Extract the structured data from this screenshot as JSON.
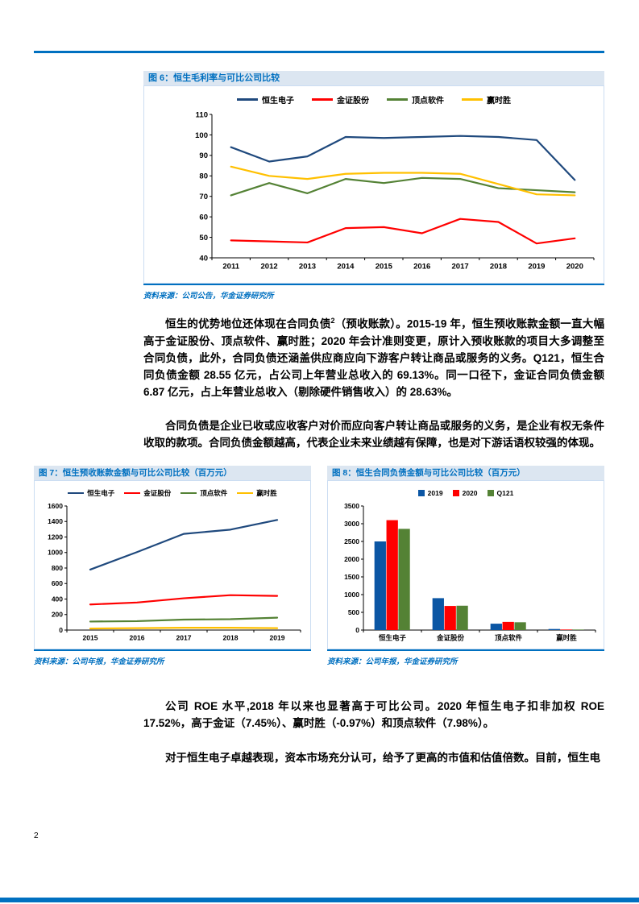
{
  "page": {
    "number": "2",
    "accent_color": "#0070C0"
  },
  "figures": {
    "fig6": {
      "title": "图 6：恒生毛利率与可比公司比较",
      "source": "资料来源：公司公告，华金证券研究所",
      "chart_data": {
        "type": "line",
        "categories": [
          "2011",
          "2012",
          "2013",
          "2014",
          "2015",
          "2016",
          "2017",
          "2018",
          "2019",
          "2020"
        ],
        "series": [
          {
            "name": "恒生电子",
            "color": "#1F497D",
            "values": [
              94,
              87,
              89.5,
              99,
              98.5,
              99,
              99.5,
              99,
              97.5,
              78
            ]
          },
          {
            "name": "金证股份",
            "color": "#FF0000",
            "values": [
              48.5,
              48,
              47.5,
              54.5,
              55,
              52,
              59,
              57.5,
              47,
              49.5
            ]
          },
          {
            "name": "顶点软件",
            "color": "#548235",
            "values": [
              70.5,
              76.5,
              71.5,
              78.5,
              76.5,
              79,
              78.5,
              74,
              73,
              72
            ]
          },
          {
            "name": "赢时胜",
            "color": "#FFC000",
            "values": [
              84.5,
              80,
              78.5,
              81,
              81.5,
              81.5,
              81,
              76,
              71,
              70.5
            ]
          }
        ],
        "ylim": [
          40,
          110
        ],
        "ytick": 10,
        "grid": false,
        "legend_position": "top"
      }
    },
    "fig7": {
      "title": "图 7：恒生预收账款金额与可比公司比较（百万元）",
      "source": "资料来源：公司年报，华金证券研究所",
      "chart_data": {
        "type": "line",
        "categories": [
          "2015",
          "2016",
          "2017",
          "2018",
          "2019"
        ],
        "series": [
          {
            "name": "恒生电子",
            "color": "#1F497D",
            "values": [
              780,
              1005,
              1240,
              1295,
              1420
            ]
          },
          {
            "name": "金证股份",
            "color": "#FF0000",
            "values": [
              330,
              355,
              410,
              450,
              440
            ]
          },
          {
            "name": "顶点软件",
            "color": "#548235",
            "values": [
              110,
              115,
              135,
              140,
              160
            ]
          },
          {
            "name": "赢时胜",
            "color": "#FFC000",
            "values": [
              20,
              25,
              30,
              30,
              25
            ]
          }
        ],
        "ylim": [
          0,
          1600
        ],
        "ytick": 200,
        "grid": false,
        "legend_position": "top"
      }
    },
    "fig8": {
      "title": "图 8：恒生合同负债金额与可比公司比较（百万元）",
      "source": "资料来源：公司年报，华金证券研究所",
      "chart_data": {
        "type": "bar",
        "categories": [
          "恒生电子",
          "金证股份",
          "顶点软件",
          "赢时胜"
        ],
        "series": [
          {
            "name": "2019",
            "color": "#0B56A4",
            "values": [
              2500,
              900,
              180,
              30
            ]
          },
          {
            "name": "2020",
            "color": "#FF0000",
            "values": [
              3100,
              680,
              230,
              15
            ]
          },
          {
            "name": "Q121",
            "color": "#548235",
            "values": [
              2855,
              687,
              220,
              15
            ]
          }
        ],
        "ylim": [
          0,
          3500
        ],
        "ytick": 500,
        "grid": false,
        "legend_position": "top"
      }
    }
  },
  "body": {
    "p1": [
      {
        "text": "恒生的优势地位还体现在合同负债"
      },
      {
        "text": "2",
        "sup": true
      },
      {
        "text": "（预收账款）。2015-19 年，恒生预收账款金额一直大幅高于金证股份、顶点软件、赢时胜；2020 年会计准则变更，原计入预收账款的项目大多调整至合同负债，此外，合同负债还涵盖供应商应向下游客户转让商品或服务的义务。Q121，恒生合同负债金额 28.55 亿元，占公司上年营业总收入的 69.13%。同一口径下，金证合同负债金额 6.87 亿元，占上年营业总收入（剔除硬件销售收入）的 28.63%。"
      }
    ],
    "p2": "合同负债是企业已收或应收客户对价而应向客户转让商品或服务的义务，是企业有权无条件收取的款项。合同负债金额越高，代表企业未来业绩越有保障，也是对下游话语权较强的体现。",
    "p3": "公司 ROE 水平,2018 年以来也显著高于可比公司。2020 年恒生电子扣非加权 ROE 17.52%，高于金证（7.45%）、赢时胜（-0.97%）和顶点软件（7.98%）。",
    "p4": "对于恒生电子卓越表现，资本市场充分认可，给予了更高的市值和估值倍数。目前，恒生电"
  }
}
